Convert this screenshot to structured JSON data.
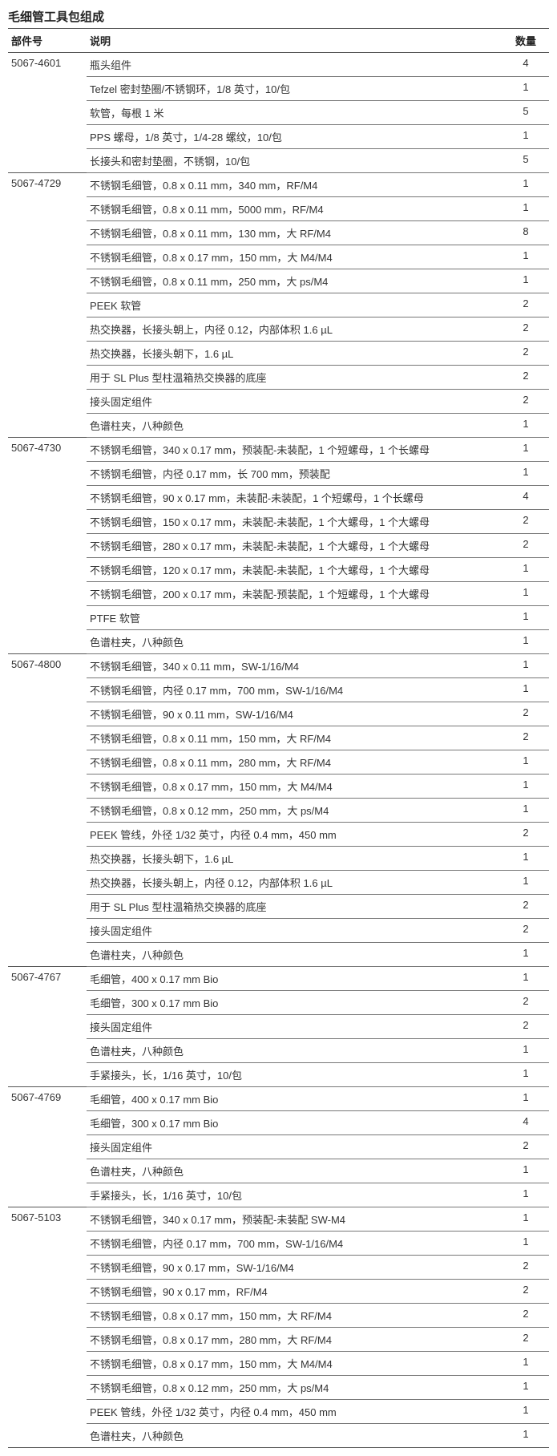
{
  "title": "毛细管工具包组成",
  "headers": {
    "part": "部件号",
    "desc": "说明",
    "qty": "数量"
  },
  "groups": [
    {
      "part": "5067-4601",
      "rows": [
        {
          "desc": "瓶头组件",
          "qty": "4"
        },
        {
          "desc": "Tefzel 密封垫圈/不锈钢环，1/8 英寸，10/包",
          "qty": "1"
        },
        {
          "desc": "软管，每根 1 米",
          "qty": "5"
        },
        {
          "desc": "PPS 螺母，1/8 英寸，1/4-28 螺纹，10/包",
          "qty": "1"
        },
        {
          "desc": "长接头和密封垫圈，不锈钢，10/包",
          "qty": "5"
        }
      ]
    },
    {
      "part": "5067-4729",
      "rows": [
        {
          "desc": "不锈钢毛细管，0.8 x 0.11 mm，340 mm，RF/M4",
          "qty": "1"
        },
        {
          "desc": "不锈钢毛细管，0.8 x 0.11 mm，5000 mm，RF/M4",
          "qty": "1"
        },
        {
          "desc": "不锈钢毛细管，0.8 x 0.11 mm，130 mm，大 RF/M4",
          "qty": "8"
        },
        {
          "desc": "不锈钢毛细管，0.8 x 0.17 mm，150 mm，大 M4/M4",
          "qty": "1"
        },
        {
          "desc": "不锈钢毛细管，0.8 x 0.11 mm，250 mm，大 ps/M4",
          "qty": "1"
        },
        {
          "desc": "PEEK 软管",
          "qty": "2"
        },
        {
          "desc": "热交换器，长接头朝上，内径 0.12，内部体积 1.6 µL",
          "qty": "2"
        },
        {
          "desc": "热交换器，长接头朝下，1.6 µL",
          "qty": "2"
        },
        {
          "desc": "用于 SL Plus 型柱温箱热交换器的底座",
          "qty": "2"
        },
        {
          "desc": "接头固定组件",
          "qty": "2"
        },
        {
          "desc": "色谱柱夹，八种颜色",
          "qty": "1"
        }
      ]
    },
    {
      "part": "5067-4730",
      "rows": [
        {
          "desc": "不锈钢毛细管，340 x 0.17 mm，预装配-未装配，1 个短螺母，1 个长螺母",
          "qty": "1"
        },
        {
          "desc": "不锈钢毛细管，内径 0.17 mm，长 700 mm，预装配",
          "qty": "1"
        },
        {
          "desc": "不锈钢毛细管，90 x 0.17 mm，未装配-未装配，1 个短螺母，1 个长螺母",
          "qty": "4"
        },
        {
          "desc": "不锈钢毛细管，150 x 0.17 mm，未装配-未装配，1 个大螺母，1 个大螺母",
          "qty": "2"
        },
        {
          "desc": "不锈钢毛细管，280 x 0.17 mm，未装配-未装配，1 个大螺母，1 个大螺母",
          "qty": "2"
        },
        {
          "desc": "不锈钢毛细管，120 x 0.17 mm，未装配-未装配，1 个大螺母，1 个大螺母",
          "qty": "1"
        },
        {
          "desc": "不锈钢毛细管，200 x 0.17 mm，未装配-预装配，1 个短螺母，1 个大螺母",
          "qty": "1"
        },
        {
          "desc": "PTFE 软管",
          "qty": "1"
        },
        {
          "desc": "色谱柱夹，八种颜色",
          "qty": "1"
        }
      ]
    },
    {
      "part": "5067-4800",
      "rows": [
        {
          "desc": "不锈钢毛细管，340 x 0.11 mm，SW-1/16/M4",
          "qty": "1"
        },
        {
          "desc": "不锈钢毛细管，内径 0.17 mm，700 mm，SW-1/16/M4",
          "qty": "1"
        },
        {
          "desc": "不锈钢毛细管，90 x 0.11 mm，SW-1/16/M4",
          "qty": "2"
        },
        {
          "desc": "不锈钢毛细管，0.8 x 0.11 mm，150 mm，大 RF/M4",
          "qty": "2"
        },
        {
          "desc": "不锈钢毛细管，0.8 x 0.11 mm，280 mm，大 RF/M4",
          "qty": "1"
        },
        {
          "desc": "不锈钢毛细管，0.8 x 0.17 mm，150 mm，大 M4/M4",
          "qty": "1"
        },
        {
          "desc": "不锈钢毛细管，0.8 x 0.12 mm，250 mm，大 ps/M4",
          "qty": "1"
        },
        {
          "desc": "PEEK 管线，外径 1/32 英寸，内径 0.4 mm，450 mm",
          "qty": "2"
        },
        {
          "desc": "热交换器，长接头朝下，1.6 µL",
          "qty": "1"
        },
        {
          "desc": "热交换器，长接头朝上，内径 0.12，内部体积 1.6 µL",
          "qty": "1"
        },
        {
          "desc": "用于 SL Plus 型柱温箱热交换器的底座",
          "qty": "2"
        },
        {
          "desc": "接头固定组件",
          "qty": "2"
        },
        {
          "desc": "色谱柱夹，八种颜色",
          "qty": "1"
        }
      ]
    },
    {
      "part": "5067-4767",
      "rows": [
        {
          "desc": "毛细管，400 x 0.17 mm Bio",
          "qty": "1"
        },
        {
          "desc": "毛细管，300 x 0.17 mm Bio",
          "qty": "2"
        },
        {
          "desc": "接头固定组件",
          "qty": "2"
        },
        {
          "desc": "色谱柱夹，八种颜色",
          "qty": "1"
        },
        {
          "desc": "手紧接头，长，1/16 英寸，10/包",
          "qty": "1"
        }
      ]
    },
    {
      "part": "5067-4769",
      "rows": [
        {
          "desc": "毛细管，400 x 0.17 mm Bio",
          "qty": "1"
        },
        {
          "desc": "毛细管，300 x 0.17 mm Bio",
          "qty": "4"
        },
        {
          "desc": "接头固定组件",
          "qty": "2"
        },
        {
          "desc": "色谱柱夹，八种颜色",
          "qty": "1"
        },
        {
          "desc": "手紧接头，长，1/16 英寸，10/包",
          "qty": "1"
        }
      ]
    },
    {
      "part": "5067-5103",
      "rows": [
        {
          "desc": "不锈钢毛细管，340 x 0.17 mm，预装配-未装配 SW-M4",
          "qty": "1"
        },
        {
          "desc": "不锈钢毛细管，内径 0.17 mm，700 mm，SW-1/16/M4",
          "qty": "1"
        },
        {
          "desc": "不锈钢毛细管，90 x 0.17 mm，SW-1/16/M4",
          "qty": "2"
        },
        {
          "desc": "不锈钢毛细管，90 x 0.17 mm，RF/M4",
          "qty": "2"
        },
        {
          "desc": "不锈钢毛细管，0.8 x 0.17 mm，150 mm，大 RF/M4",
          "qty": "2"
        },
        {
          "desc": "不锈钢毛细管，0.8 x 0.17 mm，280 mm，大 RF/M4",
          "qty": "2"
        },
        {
          "desc": "不锈钢毛细管，0.8 x 0.17 mm，150 mm，大 M4/M4",
          "qty": "1"
        },
        {
          "desc": "不锈钢毛细管，0.8 x 0.12 mm，250 mm，大 ps/M4",
          "qty": "1"
        },
        {
          "desc": "PEEK 管线，外径 1/32 英寸，内径 0.4 mm，450 mm",
          "qty": "1"
        },
        {
          "desc": "色谱柱夹，八种颜色",
          "qty": "1"
        }
      ]
    }
  ]
}
